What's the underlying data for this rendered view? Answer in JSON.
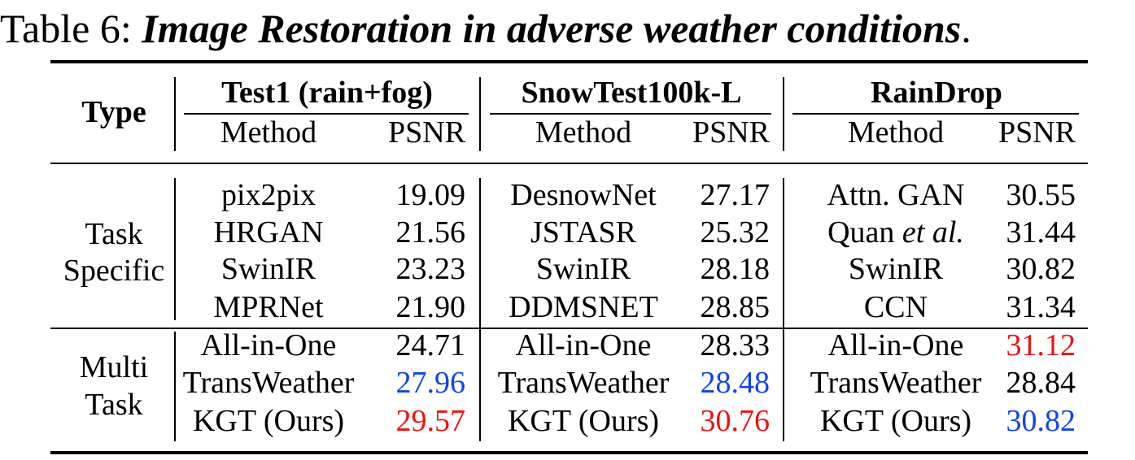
{
  "caption": {
    "prefix": "Table 6: ",
    "title": "Image Restoration in adverse weather conditions",
    "suffix": "."
  },
  "header": {
    "type": "Type",
    "datasets": [
      "Test1 (rain+fog)",
      "SnowTest100k-L",
      "RainDrop"
    ],
    "method": "Method",
    "psnr": "PSNR"
  },
  "groups": {
    "task_specific": [
      "Task",
      "Specific"
    ],
    "multi_task": [
      "Multi",
      "Task"
    ]
  },
  "colors": {
    "best": "#ee1111",
    "second": "#1144ee"
  },
  "rows": [
    {
      "cells": [
        {
          "method": "pix2pix",
          "psnr": "19.09"
        },
        {
          "method": "DesnowNet",
          "psnr": "27.17"
        },
        {
          "method": "Attn. GAN",
          "psnr": "30.55"
        }
      ]
    },
    {
      "cells": [
        {
          "method": "HRGAN",
          "psnr": "21.56"
        },
        {
          "method": "JSTASR",
          "psnr": "25.32"
        },
        {
          "method": "Quan",
          "method_suffix": "et al.",
          "psnr": "31.44"
        }
      ]
    },
    {
      "cells": [
        {
          "method": "SwinIR",
          "psnr": "23.23"
        },
        {
          "method": "SwinIR",
          "psnr": "28.18"
        },
        {
          "method": "SwinIR",
          "psnr": "30.82"
        }
      ]
    },
    {
      "cells": [
        {
          "method": "MPRNet",
          "psnr": "21.90"
        },
        {
          "method": "DDMSNET",
          "psnr": "28.85"
        },
        {
          "method": "CCN",
          "psnr": "31.34"
        }
      ]
    },
    {
      "cells": [
        {
          "method": "All-in-One",
          "psnr": "24.71"
        },
        {
          "method": "All-in-One",
          "psnr": "28.33"
        },
        {
          "method": "All-in-One",
          "psnr": "31.12",
          "rank": "best"
        }
      ]
    },
    {
      "cells": [
        {
          "method": "TransWeather",
          "psnr": "27.96",
          "rank": "second"
        },
        {
          "method": "TransWeather",
          "psnr": "28.48",
          "rank": "second"
        },
        {
          "method": "TransWeather",
          "psnr": "28.84"
        }
      ]
    },
    {
      "cells": [
        {
          "method": "KGT (Ours)",
          "psnr": "29.57",
          "rank": "best"
        },
        {
          "method": "KGT (Ours)",
          "psnr": "30.76",
          "rank": "best"
        },
        {
          "method": "KGT (Ours)",
          "psnr": "30.82",
          "rank": "second"
        }
      ]
    }
  ]
}
